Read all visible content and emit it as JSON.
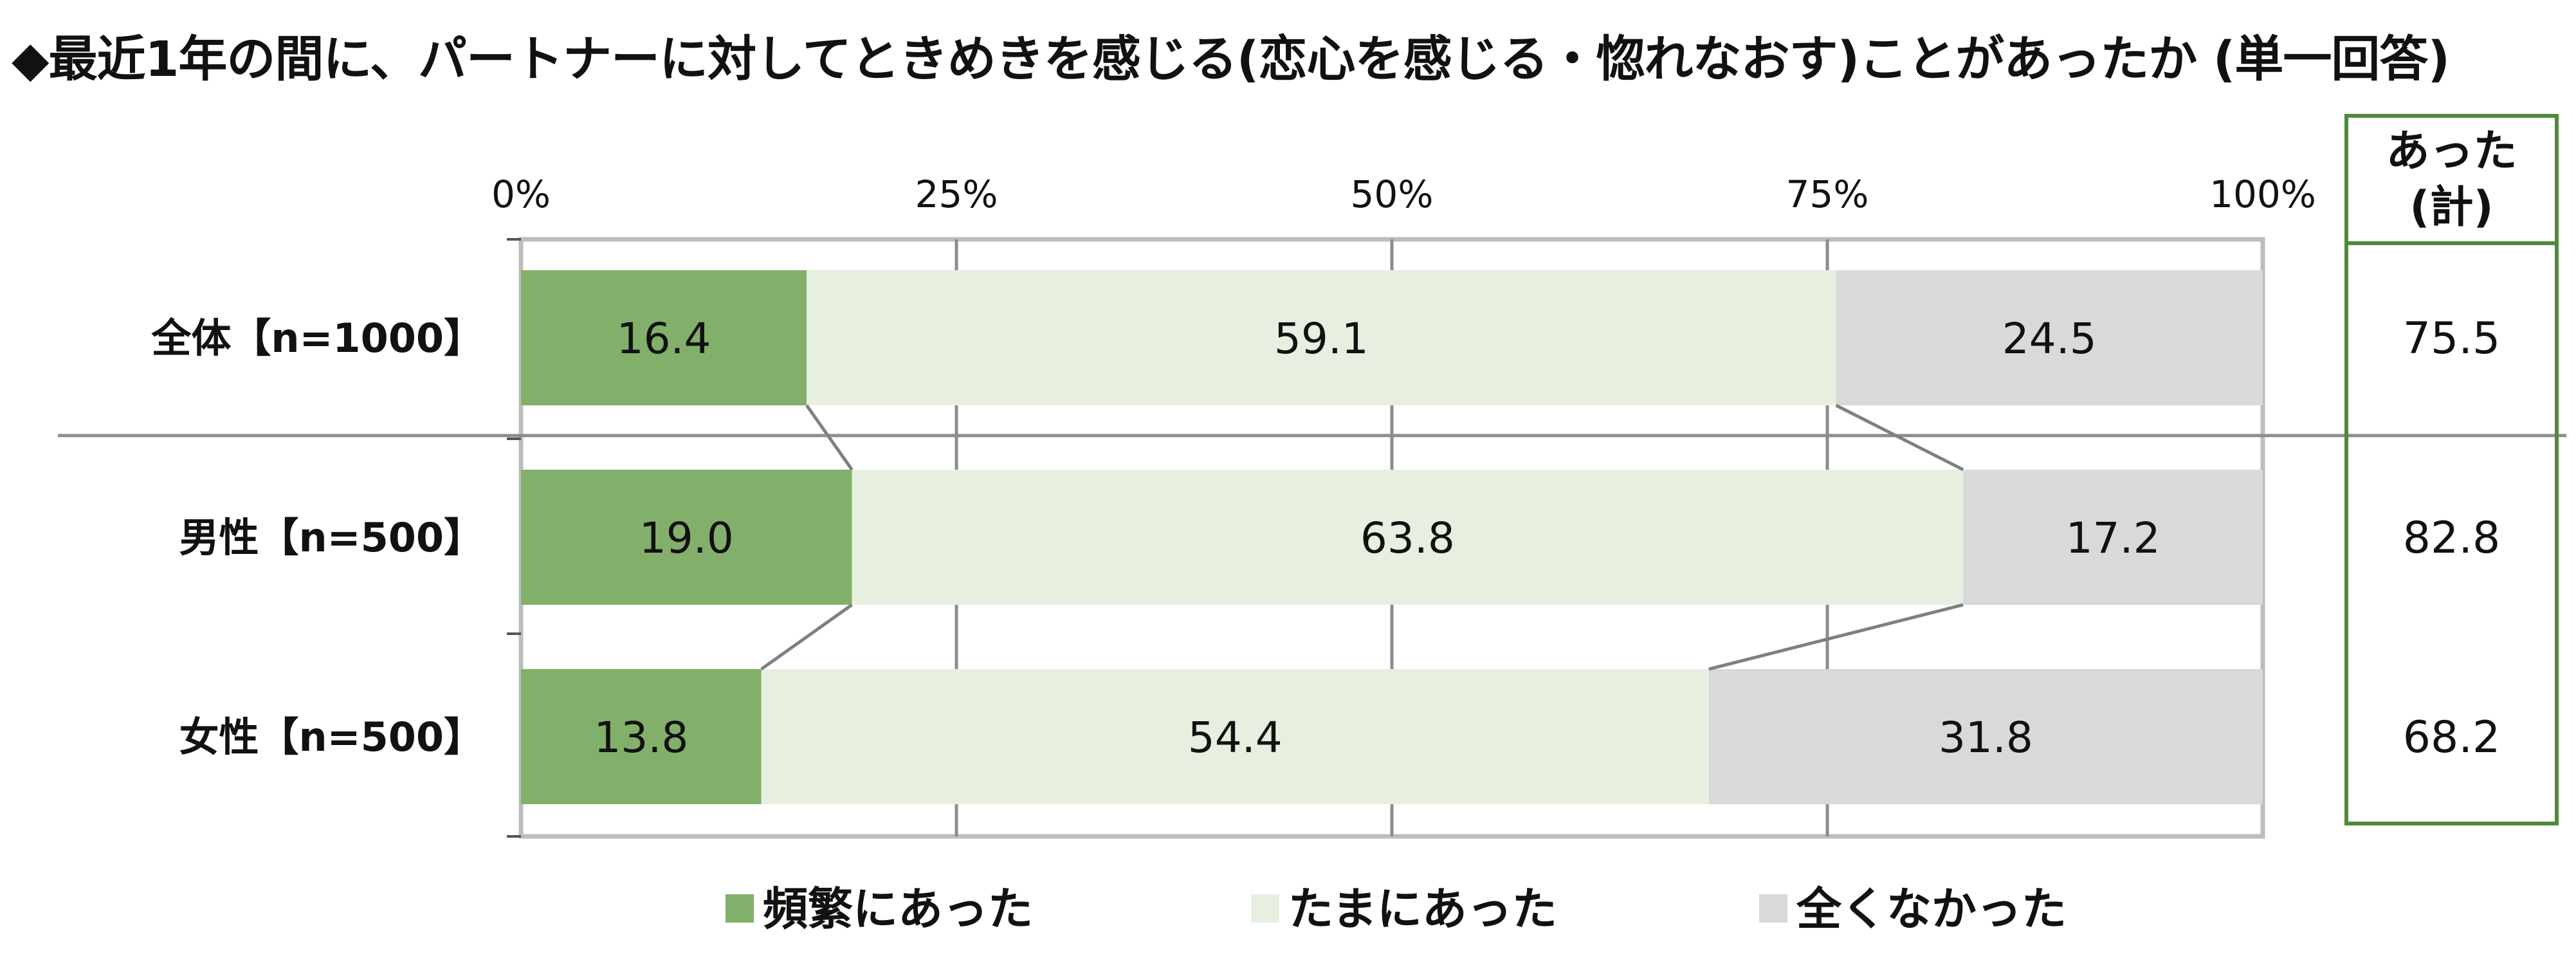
{
  "title": "◆最近1年の間に、パートナーに対してときめきを感じる(恋心を感じる・惚れなおす)ことがあったか (単一回答)",
  "chart_data": {
    "type": "bar",
    "orientation": "horizontal",
    "stacked": "100%",
    "title": "◆最近1年の間に、パートナーに対してときめきを感じる(恋心を感じる・惚れなおす)ことがあったか (単一回答)",
    "categories": [
      "全体【n=1000】",
      "男性【n=500】",
      "女性【n=500】"
    ],
    "series": [
      {
        "name": "頻繁にあった",
        "color": "#82b06a",
        "values": [
          16.4,
          19.0,
          13.8
        ]
      },
      {
        "name": "たまにあった",
        "color": "#e6efe0",
        "values": [
          59.1,
          63.8,
          54.4
        ]
      },
      {
        "name": "全くなかった",
        "color": "#d9d9d9",
        "values": [
          24.5,
          17.2,
          31.8
        ]
      }
    ],
    "xlim": [
      0,
      100
    ],
    "x_ticks": [
      "0%",
      "25%",
      "50%",
      "75%",
      "100%"
    ],
    "grid": true,
    "legend_position": "bottom",
    "total_column": {
      "header_line1": "あった",
      "header_line2": "(計)",
      "values": [
        "75.5",
        "82.8",
        "68.2"
      ],
      "border_color": "#4e8a3a"
    }
  }
}
